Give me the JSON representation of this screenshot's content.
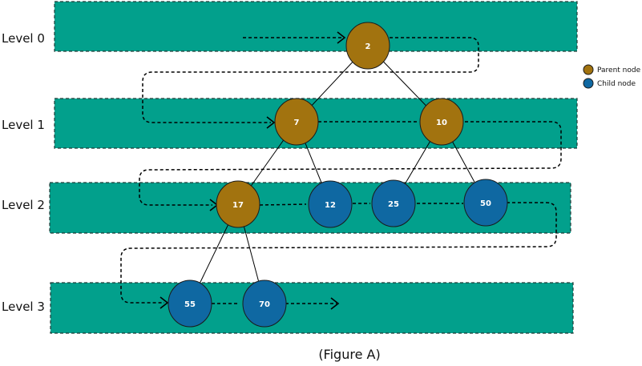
{
  "levels": [
    "Level 0",
    "Level 1",
    "Level 2",
    "Level 3"
  ],
  "legend": [
    {
      "label": "Parent node",
      "color": "#a2730f"
    },
    {
      "label": "Child node",
      "color": "#0f68a2"
    }
  ],
  "nodes": [
    {
      "id": "n2",
      "value": "2",
      "type": "parent"
    },
    {
      "id": "n7",
      "value": "7",
      "type": "parent"
    },
    {
      "id": "n10",
      "value": "10",
      "type": "parent"
    },
    {
      "id": "n17",
      "value": "17",
      "type": "parent"
    },
    {
      "id": "n12",
      "value": "12",
      "type": "child"
    },
    {
      "id": "n25",
      "value": "25",
      "type": "child"
    },
    {
      "id": "n50",
      "value": "50",
      "type": "child"
    },
    {
      "id": "n55",
      "value": "55",
      "type": "child"
    },
    {
      "id": "n70",
      "value": "70",
      "type": "child"
    }
  ],
  "edges": [
    [
      "n2",
      "n7"
    ],
    [
      "n2",
      "n10"
    ],
    [
      "n7",
      "n17"
    ],
    [
      "n7",
      "n12"
    ],
    [
      "n10",
      "n25"
    ],
    [
      "n10",
      "n50"
    ],
    [
      "n17",
      "n55"
    ],
    [
      "n17",
      "n70"
    ]
  ],
  "caption": "(Figure A)",
  "colors": {
    "band": "#02a08c",
    "parent": "#a2730f",
    "child": "#0f68a2"
  }
}
